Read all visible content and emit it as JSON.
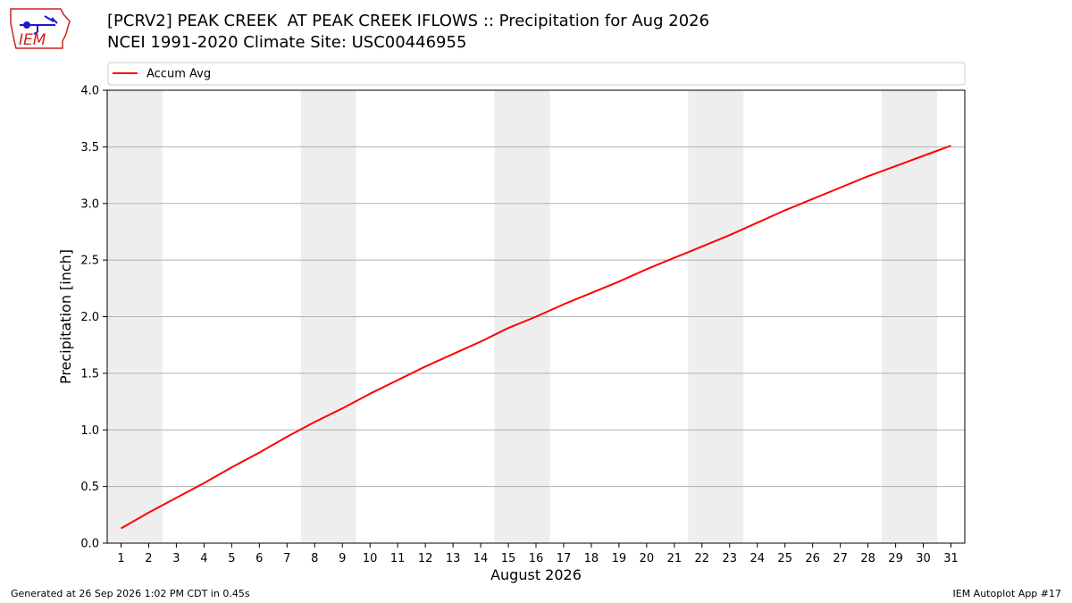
{
  "header": {
    "title_line1": "[PCRV2] PEAK CREEK  AT PEAK CREEK IFLOWS :: Precipitation for Aug 2026",
    "title_line2": "NCEI 1991-2020 Climate Site: USC00446955"
  },
  "logo": {
    "text": "IEM",
    "icon": "iem-logo-icon"
  },
  "footer": {
    "left": "Generated at 26 Sep 2026 1:02 PM CDT in 0.45s",
    "right": "IEM Autoplot App #17"
  },
  "colors": {
    "series": "#ff0000",
    "weekend_band": "#eeeeee",
    "grid": "#b0b0b0",
    "logo": "#cc2222"
  },
  "chart_data": {
    "type": "line",
    "xlabel": "August 2026",
    "ylabel": "Precipitation [inch]",
    "xlim": [
      0.5,
      31.5
    ],
    "ylim": [
      0,
      4.0
    ],
    "yticks": [
      0.0,
      0.5,
      1.0,
      1.5,
      2.0,
      2.5,
      3.0,
      3.5,
      4.0
    ],
    "ytick_labels": [
      "0.0",
      "0.5",
      "1.0",
      "1.5",
      "2.0",
      "2.5",
      "3.0",
      "3.5",
      "4.0"
    ],
    "xticks": [
      1,
      2,
      3,
      4,
      5,
      6,
      7,
      8,
      9,
      10,
      11,
      12,
      13,
      14,
      15,
      16,
      17,
      18,
      19,
      20,
      21,
      22,
      23,
      24,
      25,
      26,
      27,
      28,
      29,
      30,
      31
    ],
    "xtick_labels": [
      "1",
      "2",
      "3",
      "4",
      "5",
      "6",
      "7",
      "8",
      "9",
      "10",
      "11",
      "12",
      "13",
      "14",
      "15",
      "16",
      "17",
      "18",
      "19",
      "20",
      "21",
      "22",
      "23",
      "24",
      "25",
      "26",
      "27",
      "28",
      "29",
      "30",
      "31"
    ],
    "grid": "horizontal",
    "legend": {
      "placement": "top",
      "entries": [
        "Accum Avg"
      ]
    },
    "weekend_bands": [
      [
        0.5,
        2.5
      ],
      [
        7.5,
        9.5
      ],
      [
        14.5,
        16.5
      ],
      [
        21.5,
        23.5
      ],
      [
        28.5,
        30.5
      ]
    ],
    "series": [
      {
        "name": "Accum Avg",
        "x": [
          1,
          2,
          3,
          4,
          5,
          6,
          7,
          8,
          9,
          10,
          11,
          12,
          13,
          14,
          15,
          16,
          17,
          18,
          19,
          20,
          21,
          22,
          23,
          24,
          25,
          26,
          27,
          28,
          29,
          30,
          31
        ],
        "values": [
          0.13,
          0.27,
          0.4,
          0.53,
          0.67,
          0.8,
          0.94,
          1.07,
          1.19,
          1.32,
          1.44,
          1.56,
          1.67,
          1.78,
          1.9,
          2.0,
          2.11,
          2.21,
          2.31,
          2.42,
          2.52,
          2.62,
          2.72,
          2.83,
          2.94,
          3.04,
          3.14,
          3.24,
          3.33,
          3.42,
          3.51
        ]
      }
    ]
  }
}
